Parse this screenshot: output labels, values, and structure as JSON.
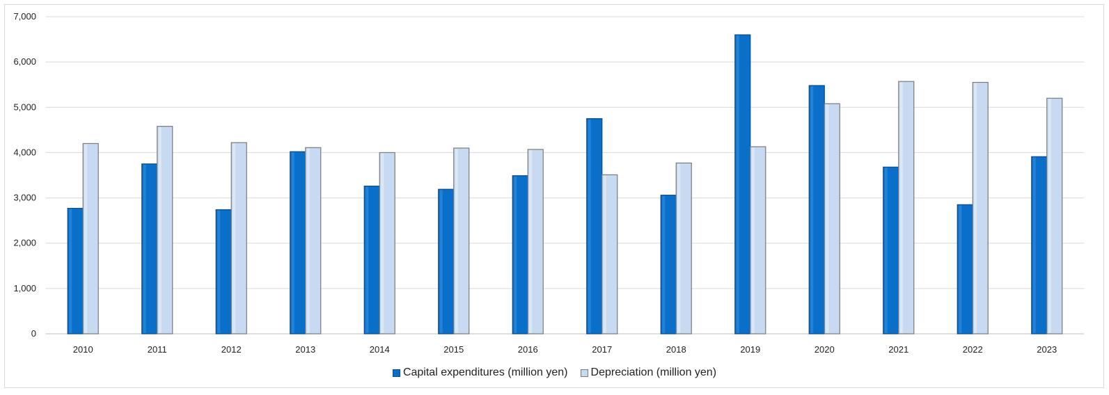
{
  "chart_data": {
    "type": "bar",
    "categories": [
      "2010",
      "2011",
      "2012",
      "2013",
      "2014",
      "2015",
      "2016",
      "2017",
      "2018",
      "2019",
      "2020",
      "2021",
      "2022",
      "2023"
    ],
    "series": [
      {
        "name": "Capital expenditures (million yen)",
        "color": "#0a6fc9",
        "values": [
          2770,
          3750,
          2740,
          4020,
          3260,
          3190,
          3490,
          4750,
          3060,
          6600,
          5480,
          3680,
          2850,
          3910
        ]
      },
      {
        "name": "Depreciation (million yen)",
        "color": "#c7daf1",
        "values": [
          4200,
          4580,
          4220,
          4110,
          4000,
          4100,
          4070,
          3510,
          3770,
          4130,
          5080,
          5570,
          5550,
          5200
        ]
      }
    ],
    "ylim": [
      0,
      7000
    ],
    "yticks": [
      "0",
      "1,000",
      "2,000",
      "3,000",
      "4,000",
      "5,000",
      "6,000",
      "7,000"
    ],
    "grid": true,
    "legend_position": "bottom"
  }
}
